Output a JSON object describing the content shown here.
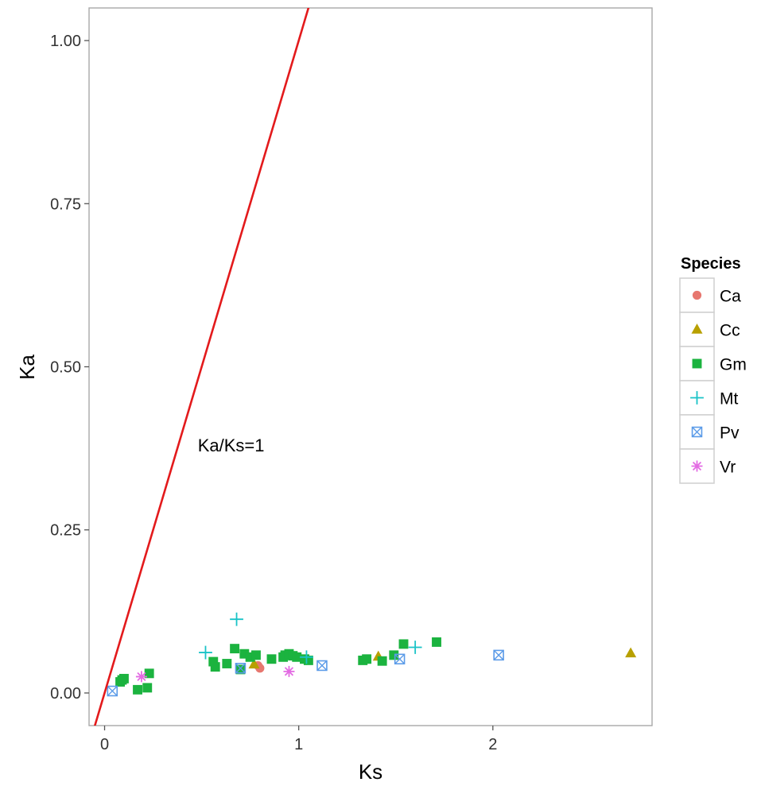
{
  "chart_data": {
    "type": "scatter",
    "xlabel": "Ks",
    "ylabel": "Ka",
    "xlim": [
      -0.08,
      2.82
    ],
    "ylim": [
      -0.05,
      1.05
    ],
    "x_ticks": [
      0,
      1,
      2
    ],
    "x_tick_labels": [
      "0",
      "1",
      "2"
    ],
    "y_ticks": [
      0,
      0.25,
      0.5,
      0.75,
      1.0
    ],
    "y_tick_labels": [
      "0.00",
      "0.25",
      "0.50",
      "0.75",
      "1.00"
    ],
    "grid": false,
    "legend_title": "Species",
    "legend_position": "right",
    "reference_line": {
      "slope": 1,
      "intercept": 0,
      "color": "#e31a1c"
    },
    "annotation": {
      "text": "Ka/Ks=1",
      "x": 0.48,
      "y": 0.37
    },
    "series": [
      {
        "name": "Ca",
        "marker": "circle",
        "color": "#E7776F",
        "points": [
          [
            0.79,
            0.042
          ],
          [
            0.8,
            0.038
          ]
        ]
      },
      {
        "name": "Cc",
        "marker": "triangle",
        "color": "#B8A000",
        "points": [
          [
            0.77,
            0.044
          ],
          [
            1.41,
            0.056
          ],
          [
            2.71,
            0.061
          ]
        ]
      },
      {
        "name": "Gm",
        "marker": "square",
        "color": "#1BB33F",
        "points": [
          [
            0.08,
            0.017
          ],
          [
            0.09,
            0.02
          ],
          [
            0.1,
            0.022
          ],
          [
            0.17,
            0.005
          ],
          [
            0.22,
            0.008
          ],
          [
            0.23,
            0.03
          ],
          [
            0.56,
            0.048
          ],
          [
            0.57,
            0.04
          ],
          [
            0.63,
            0.045
          ],
          [
            0.67,
            0.068
          ],
          [
            0.7,
            0.036
          ],
          [
            0.72,
            0.06
          ],
          [
            0.75,
            0.055
          ],
          [
            0.78,
            0.058
          ],
          [
            0.86,
            0.052
          ],
          [
            0.92,
            0.055
          ],
          [
            0.93,
            0.058
          ],
          [
            0.95,
            0.06
          ],
          [
            0.97,
            0.057
          ],
          [
            0.99,
            0.055
          ],
          [
            1.03,
            0.052
          ],
          [
            1.05,
            0.05
          ],
          [
            1.33,
            0.05
          ],
          [
            1.35,
            0.052
          ],
          [
            1.43,
            0.049
          ],
          [
            1.49,
            0.058
          ],
          [
            1.54,
            0.075
          ],
          [
            1.71,
            0.078
          ]
        ]
      },
      {
        "name": "Mt",
        "marker": "plus",
        "color": "#1AC3C7",
        "points": [
          [
            0.52,
            0.062
          ],
          [
            0.68,
            0.113
          ],
          [
            1.04,
            0.055
          ],
          [
            1.6,
            0.07
          ]
        ]
      },
      {
        "name": "Pv",
        "marker": "boxx",
        "color": "#5B9BE8",
        "points": [
          [
            0.04,
            0.003
          ],
          [
            0.7,
            0.038
          ],
          [
            1.12,
            0.042
          ],
          [
            1.52,
            0.052
          ],
          [
            2.03,
            0.058
          ]
        ]
      },
      {
        "name": "Vr",
        "marker": "star",
        "color": "#E36BE3",
        "points": [
          [
            0.19,
            0.025
          ],
          [
            0.95,
            0.033
          ]
        ]
      }
    ]
  }
}
